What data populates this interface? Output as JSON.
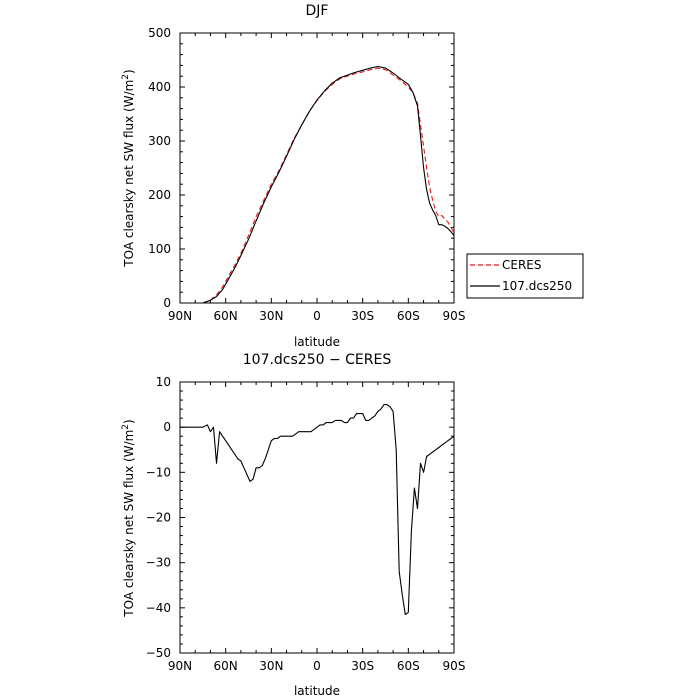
{
  "chart_data": [
    {
      "type": "line",
      "title": "DJF",
      "xlabel": "latitude",
      "ylabel_main": "TOA clearsky net SW flux (W/m",
      "ylabel_sup": "2",
      "ylabel_end": ")",
      "xlim": [
        90,
        -90
      ],
      "ylim": [
        0,
        500
      ],
      "x_ticks": [
        90,
        60,
        30,
        0,
        -30,
        -60,
        -90
      ],
      "x_tick_labels": [
        "90N",
        "60N",
        "30N",
        "0",
        "30S",
        "60S",
        "90S"
      ],
      "y_ticks": [
        0,
        100,
        200,
        300,
        400,
        500
      ],
      "y_tick_labels": [
        "0",
        "100",
        "200",
        "300",
        "400",
        "500"
      ],
      "legend": {
        "placement": "right"
      },
      "series": [
        {
          "name": "CERES",
          "color": "#e8191b",
          "dash": true,
          "x": [
            75,
            70,
            66,
            62,
            58,
            54,
            50,
            45,
            40,
            35,
            30,
            25,
            20,
            15,
            10,
            5,
            0,
            -5,
            -10,
            -15,
            -20,
            -25,
            -30,
            -35,
            -40,
            -45,
            -50,
            -55,
            -60,
            -63,
            -66,
            -68,
            -70,
            -72,
            -74,
            -76,
            -78,
            -80,
            -82,
            -84,
            -86,
            -88,
            -90
          ],
          "y": [
            0,
            5,
            15,
            30,
            50,
            70,
            92,
            125,
            160,
            190,
            220,
            245,
            275,
            305,
            330,
            355,
            375,
            392,
            405,
            415,
            420,
            425,
            428,
            432,
            435,
            432,
            422,
            412,
            400,
            390,
            370,
            330,
            290,
            250,
            215,
            190,
            170,
            160,
            162,
            155,
            150,
            140,
            130
          ]
        },
        {
          "name": "107.dcs250",
          "color": "#000000",
          "dash": false,
          "x": [
            75,
            70,
            66,
            62,
            58,
            54,
            50,
            45,
            40,
            35,
            30,
            25,
            20,
            15,
            10,
            5,
            0,
            -5,
            -10,
            -15,
            -20,
            -25,
            -30,
            -35,
            -40,
            -45,
            -50,
            -55,
            -60,
            -63,
            -66,
            -68,
            -70,
            -72,
            -74,
            -76,
            -78,
            -80,
            -82,
            -84,
            -86,
            -88,
            -90
          ],
          "y": [
            0,
            5,
            12,
            25,
            45,
            65,
            88,
            118,
            152,
            185,
            215,
            242,
            272,
            303,
            330,
            355,
            376,
            393,
            407,
            417,
            422,
            427,
            431,
            435,
            438,
            435,
            426,
            415,
            405,
            390,
            365,
            310,
            250,
            210,
            185,
            172,
            162,
            145,
            145,
            142,
            138,
            132,
            125
          ]
        }
      ]
    },
    {
      "type": "line",
      "title": "107.dcs250 − CERES",
      "xlabel": "latitude",
      "ylabel_main": "TOA clearsky net SW flux (W/m",
      "ylabel_sup": "2",
      "ylabel_end": ")",
      "xlim": [
        90,
        -90
      ],
      "ylim": [
        -50,
        10
      ],
      "x_ticks": [
        90,
        60,
        30,
        0,
        -30,
        -60,
        -90
      ],
      "x_tick_labels": [
        "90N",
        "60N",
        "30N",
        "0",
        "30S",
        "60S",
        "90S"
      ],
      "y_ticks": [
        -50,
        -40,
        -30,
        -20,
        -10,
        0,
        10
      ],
      "y_tick_labels": [
        "−50",
        "−40",
        "−30",
        "−20",
        "−10",
        "0",
        "10"
      ],
      "series": [
        {
          "color": "#000000",
          "dash": false,
          "x": [
            90,
            80,
            75,
            72,
            70,
            68,
            66,
            64,
            62,
            60,
            58,
            56,
            54,
            52,
            50,
            48,
            46,
            44,
            42,
            40,
            38,
            36,
            34,
            32,
            30,
            28,
            26,
            24,
            22,
            20,
            18,
            16,
            14,
            12,
            10,
            8,
            6,
            4,
            2,
            0,
            -2,
            -4,
            -6,
            -8,
            -10,
            -12,
            -14,
            -16,
            -18,
            -20,
            -22,
            -24,
            -26,
            -28,
            -30,
            -32,
            -34,
            -36,
            -38,
            -40,
            -42,
            -44,
            -46,
            -48,
            -50,
            -52,
            -54,
            -56,
            -58,
            -60,
            -62,
            -64,
            -66,
            -68,
            -70,
            -72,
            -74,
            -76,
            -78,
            -80,
            -82,
            -84,
            -86,
            -88,
            -90
          ],
          "y": [
            0,
            0,
            0,
            0.5,
            -1,
            0,
            -8,
            -1,
            -2,
            -3,
            -4,
            -5,
            -6,
            -7,
            -7.5,
            -9,
            -10.5,
            -12,
            -11.5,
            -9,
            -9,
            -8.5,
            -7,
            -5,
            -3,
            -2.5,
            -2.5,
            -2,
            -2,
            -2,
            -2,
            -2,
            -1.5,
            -1,
            -1,
            -1,
            -1,
            -1,
            -0.5,
            0,
            0.5,
            0.5,
            1,
            1,
            1,
            1.5,
            1.5,
            1.5,
            1,
            1,
            2,
            2,
            3,
            3,
            3,
            1.5,
            1.5,
            2,
            2.5,
            3.5,
            4,
            5,
            5,
            4.5,
            3.5,
            -5,
            -32,
            -37,
            -41.5,
            -41,
            -23,
            -13.5,
            -18,
            -8,
            -10,
            -6.5,
            -6,
            -5.5,
            -5,
            -4.5,
            -4,
            -3.5,
            -3,
            -2.5,
            -2
          ]
        }
      ]
    }
  ]
}
